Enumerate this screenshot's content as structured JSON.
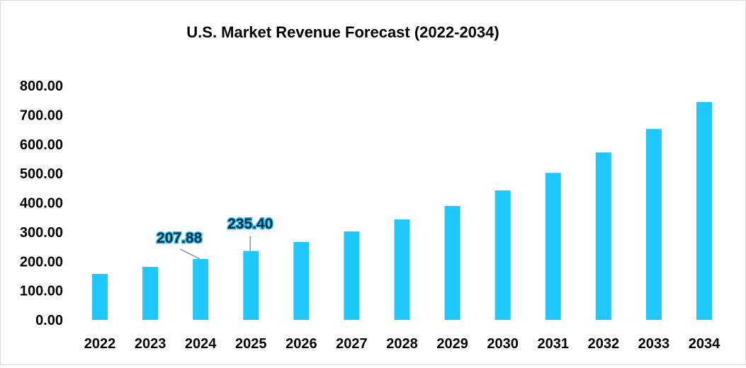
{
  "chart_data": {
    "type": "bar",
    "title": "U.S. Market Revenue Forecast (2022-2034)",
    "xlabel": "",
    "ylabel": "",
    "categories": [
      "2022",
      "2023",
      "2024",
      "2025",
      "2026",
      "2027",
      "2028",
      "2029",
      "2030",
      "2031",
      "2032",
      "2033",
      "2034"
    ],
    "values": [
      157,
      181,
      207.88,
      235.4,
      266,
      302,
      343,
      389,
      442,
      502,
      572,
      652,
      744
    ],
    "ylim": [
      0,
      800
    ],
    "yticks": [
      "0.00",
      "100.00",
      "200.00",
      "300.00",
      "400.00",
      "500.00",
      "600.00",
      "700.00",
      "800.00"
    ],
    "data_labels": [
      {
        "category": "2024",
        "text": "207.88"
      },
      {
        "category": "2025",
        "text": "235.40"
      }
    ],
    "grid": false,
    "legend": "none",
    "bar_color": "#1ec8fc"
  }
}
